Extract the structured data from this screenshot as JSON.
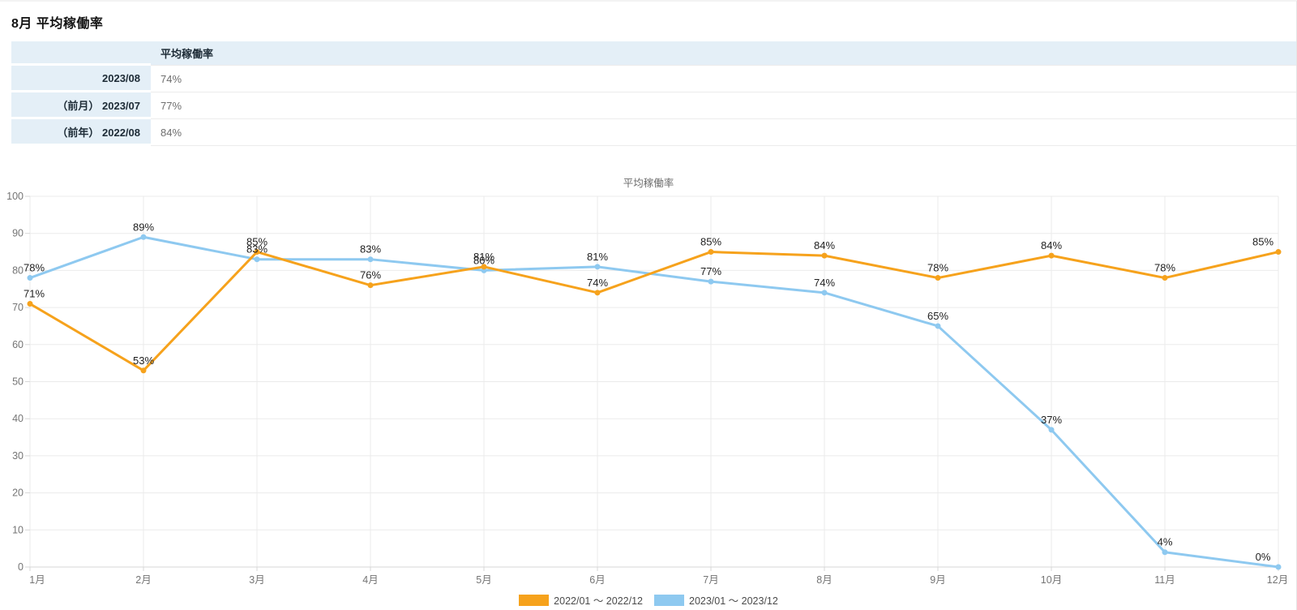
{
  "page": {
    "title": "8月 平均稼働率"
  },
  "summary_table": {
    "value_column_header": "平均稼働率",
    "rows": [
      {
        "label_prefix": "",
        "label_date": "2023/08",
        "value": "74%"
      },
      {
        "label_prefix": "（前月）",
        "label_date": "2023/07",
        "value": "77%"
      },
      {
        "label_prefix": "（前年）",
        "label_date": "2022/08",
        "value": "84%"
      }
    ]
  },
  "colors": {
    "table_accent_bg": "#E4EFF7",
    "series_2022_orange": "#F6A21C",
    "series_2023_blue": "#8EC9F0"
  },
  "chart_data": {
    "type": "line",
    "title": "平均稼働率",
    "categories": [
      "1月",
      "2月",
      "3月",
      "4月",
      "5月",
      "6月",
      "7月",
      "8月",
      "9月",
      "10月",
      "11月",
      "12月"
    ],
    "series": [
      {
        "name": "2022/01 ～ 2022/12",
        "color": "#F6A21C",
        "values": [
          71,
          53,
          85,
          76,
          81,
          74,
          85,
          84,
          78,
          84,
          78,
          85
        ]
      },
      {
        "name": "2023/01 ～ 2023/12",
        "color": "#8EC9F0",
        "values": [
          78,
          89,
          83,
          83,
          80,
          81,
          77,
          74,
          65,
          37,
          4,
          0
        ]
      }
    ],
    "data_label_suffix": "%",
    "ylim": [
      0,
      100
    ],
    "y_ticks": [
      0,
      10,
      20,
      30,
      40,
      50,
      60,
      70,
      80,
      90,
      100
    ],
    "grid": true,
    "legend_position": "bottom",
    "style": {
      "grid_color": "#ebebeb",
      "axis_color": "#d7d7d7",
      "tick_label_color": "#757575",
      "title_color": "#6b6b6b",
      "data_label_color": "#1f1f1f"
    }
  }
}
